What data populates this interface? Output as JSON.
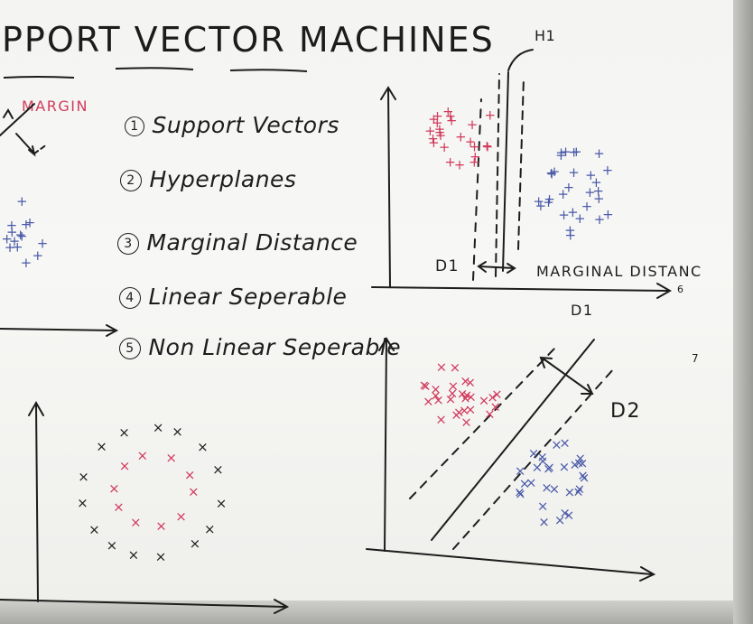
{
  "board": {
    "title": "PPORT VECTOR MACHINES",
    "margin_label": "MARGIN",
    "concepts": [
      {
        "number": "1",
        "text": "Support Vectors"
      },
      {
        "number": "2",
        "text": "Hyperplanes"
      },
      {
        "number": "3",
        "text": "Marginal Distance"
      },
      {
        "number": "4",
        "text": "Linear Seperable"
      },
      {
        "number": "5",
        "text": "Non Linear Seperable"
      }
    ],
    "top_plot": {
      "hyperplane_label": "H1",
      "d1_label_left": "D1",
      "marginal_distance_label": "MARGINAL DISTANC",
      "axis_label": "D1",
      "axis_end_mark": "6"
    },
    "bottom_plot": {
      "d2_label": "D2",
      "side_mark": "7"
    }
  },
  "colors": {
    "board": "#f4f4f2",
    "ink_black": "#1d1d1d",
    "ink_red": "#d13a5b",
    "ink_blue": "#4a5aa8"
  }
}
